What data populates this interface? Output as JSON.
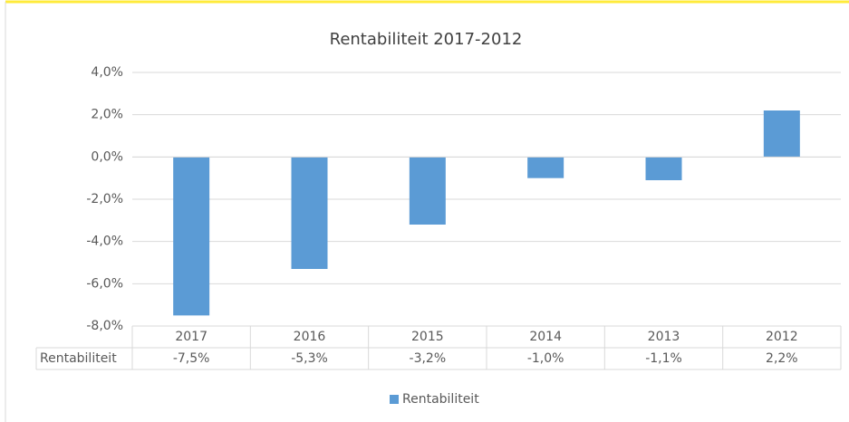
{
  "chart_data": {
    "type": "bar",
    "title": "Rentabiliteit 2017-2012",
    "categories": [
      "2017",
      "2016",
      "2015",
      "2014",
      "2013",
      "2012"
    ],
    "series": [
      {
        "name": "Rentabiliteit",
        "color": "#5b9bd5",
        "values": [
          -7.5,
          -5.3,
          -3.2,
          -1.0,
          -1.1,
          2.2
        ],
        "value_labels": [
          "-7,5%",
          "-5,3%",
          "-3,2%",
          "-1,0%",
          "-1,1%",
          "2,2%"
        ]
      }
    ],
    "ylim": [
      -8,
      4
    ],
    "yticks": [
      {
        "value": -8,
        "label": "-8,0%"
      },
      {
        "value": -6,
        "label": "-6,0%"
      },
      {
        "value": -4,
        "label": "-4,0%"
      },
      {
        "value": -2,
        "label": "-2,0%"
      },
      {
        "value": 0,
        "label": "0,0%"
      },
      {
        "value": 2,
        "label": "2,0%"
      },
      {
        "value": 4,
        "label": "4,0%"
      }
    ],
    "grid": true,
    "legend": "bottom"
  }
}
